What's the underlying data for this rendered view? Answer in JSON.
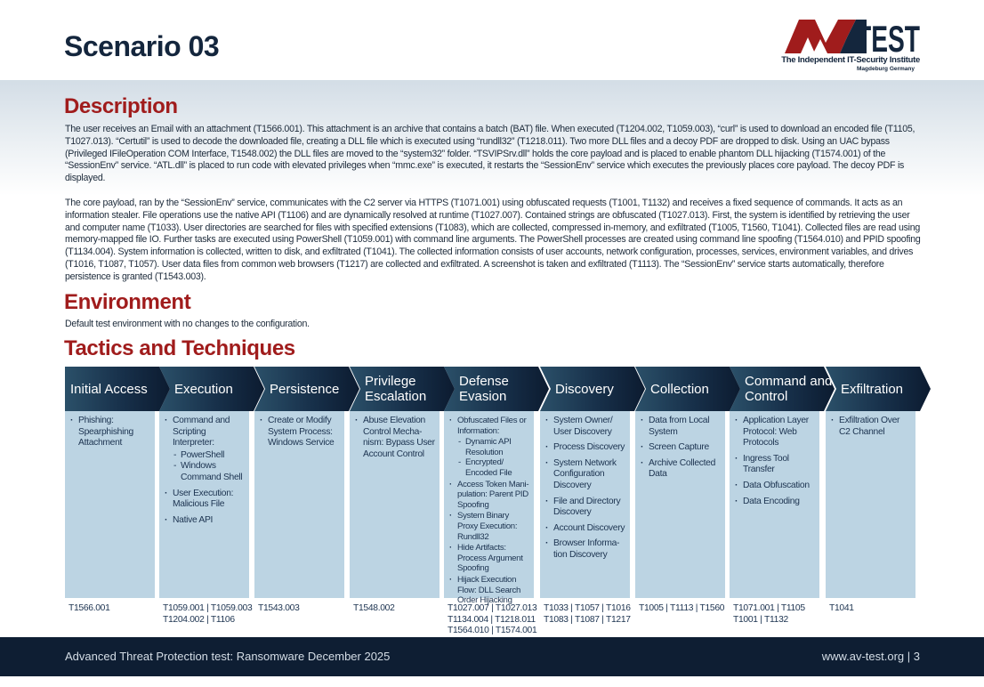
{
  "page_title": "Scenario 03",
  "logo": {
    "text": "AV-TEST",
    "tagline": "The Independent IT-Security Institute",
    "location": "Magdeburg Germany",
    "colors": {
      "red": "#a01c1c",
      "navy": "#14263d"
    }
  },
  "description": {
    "heading": "Description",
    "paragraphs": [
      "The user receives an Email with an attachment (T1566.001). This attachment is an archive that contains a batch (BAT) file. When executed (T1204.002, T1059.003), “curl” is used to download an encoded file (T1105, T1027.013). “Certutil” is used to decode the downloaded file, creating a DLL file which is executed using “rundll32” (T1218.011). Two more DLL files and a decoy PDF are dropped to disk. Using an UAC bypass (Privileged IFileOperation COM Interface, T1548.002) the DLL files are moved to the “system32” folder. “TSVIPSrv.dll” holds the core payload and is placed to enable phantom DLL hijacking (T1574.001) of the “SessionEnv” service. “ATL.dll” is placed to run code with elevated privileges when “mmc.exe” is executed, it restarts the “SessionEnv” service which executes the previously places core payload. The decoy PDF is displayed.",
      "The core payload, ran by the “SessionEnv” service, communicates with the C2 server via HTTPS (T1071.001) using obfuscated requests (T1001, T1132) and receives a fixed sequence of commands. It acts as an information stealer. File operations use the native API (T1106) and are dynamically resolved at runtime (T1027.007). Contained strings are obfuscated (T1027.013). First, the system is identified by retrieving the user and computer name (T1033). User directories are searched for files with specified extensions (T1083), which are collected, compressed in-memory, and exfiltrated (T1005, T1560, T1041). Collected files are read using memory-mapped file IO. Further tasks are executed using PowerShell (T1059.001) with command line arguments. The PowerShell processes are created using command line spoofing (T1564.010) and PPID spoofing (T1134.004). System information is collected, written to disk, and exfiltrated (T1041). The collected information consists of user accounts, network configuration, processes, services, environment variables, and drives (T1016, T1087, T1057). User data files from common web browsers (T1217) are collected and exfiltrated. A screenshot is taken and exfiltrated (T1113). The “SessionEnv” service starts automatically, therefore persistence is granted (T1543.003)."
    ]
  },
  "environment": {
    "heading": "Environment",
    "text": "Default test environment with no changes to the configuration."
  },
  "tactics": {
    "heading": "Tactics and Techniques",
    "columns": [
      {
        "title": "Initial Access",
        "items": [
          {
            "text": "Phishing: Spearphishing Attachment"
          }
        ],
        "codes": "T1566.001"
      },
      {
        "title": "Execution",
        "items": [
          {
            "text": "Command and Scripting Interpreter:",
            "sub": [
              "PowerShell",
              "Windows Command Shell"
            ]
          },
          {
            "text": "User Execution: Malicious File"
          },
          {
            "text": "Native API"
          }
        ],
        "codes": "T1059.001 | T1059.003\nT1204.002 | T1106"
      },
      {
        "title": "Persistence",
        "items": [
          {
            "text": "Create or Modify System Process: Windows Service"
          }
        ],
        "codes": "T1543.003"
      },
      {
        "title": "Privilege Escalation",
        "items": [
          {
            "text": "Abuse Elevation Control Mecha-nism: Bypass User Account Control"
          }
        ],
        "codes": "T1548.002"
      },
      {
        "title": "Defense Evasion",
        "dense": true,
        "items": [
          {
            "text": "Obfuscated Files or Information:",
            "sub": [
              "Dynamic API Resolution",
              "Encrypted/ Encoded File"
            ]
          },
          {
            "text": "Access Token Mani-pulation: Parent PID Spoofing"
          },
          {
            "text": "System Binary Proxy Execution: Rundll32"
          },
          {
            "text": "Hide Artifacts: Process Argument Spoofing"
          },
          {
            "text": "Hijack Execution Flow: DLL Search Order Hijacking"
          }
        ],
        "codes": "T1027.007 | T1027.013\nT1134.004 | T1218.011\nT1564.010 | T1574.001"
      },
      {
        "title": "Discovery",
        "items": [
          {
            "text": "System Owner/ User Discovery"
          },
          {
            "text": "Process Discovery"
          },
          {
            "text": "System Network Configuration Discovery"
          },
          {
            "text": "File and Directory Discovery"
          },
          {
            "text": "Account Discovery"
          },
          {
            "text": "Browser Informa-tion Discovery"
          }
        ],
        "codes": "T1033 | T1057 | T1016\nT1083 | T1087 | T1217"
      },
      {
        "title": "Collection",
        "items": [
          {
            "text": "Data from Local System"
          },
          {
            "text": "Screen Capture"
          },
          {
            "text": "Archive Collected Data"
          }
        ],
        "codes": "T1005 | T1113 | T1560"
      },
      {
        "title": "Command and Control",
        "items": [
          {
            "text": "Application Layer Protocol: Web Protocols"
          },
          {
            "text": "Ingress Tool Transfer"
          },
          {
            "text": "Data Obfuscation"
          },
          {
            "text": "Data Encoding"
          }
        ],
        "codes": "T1071.001 | T1105\nT1001 | T1132"
      },
      {
        "title": "Exfiltration",
        "items": [
          {
            "text": "Exfiltration Over C2 Channel"
          }
        ],
        "codes": "T1041"
      }
    ]
  },
  "footer": {
    "left": "Advanced Threat Protection test: Ransomware December 2025",
    "right": "www.av-test.org | 3"
  }
}
